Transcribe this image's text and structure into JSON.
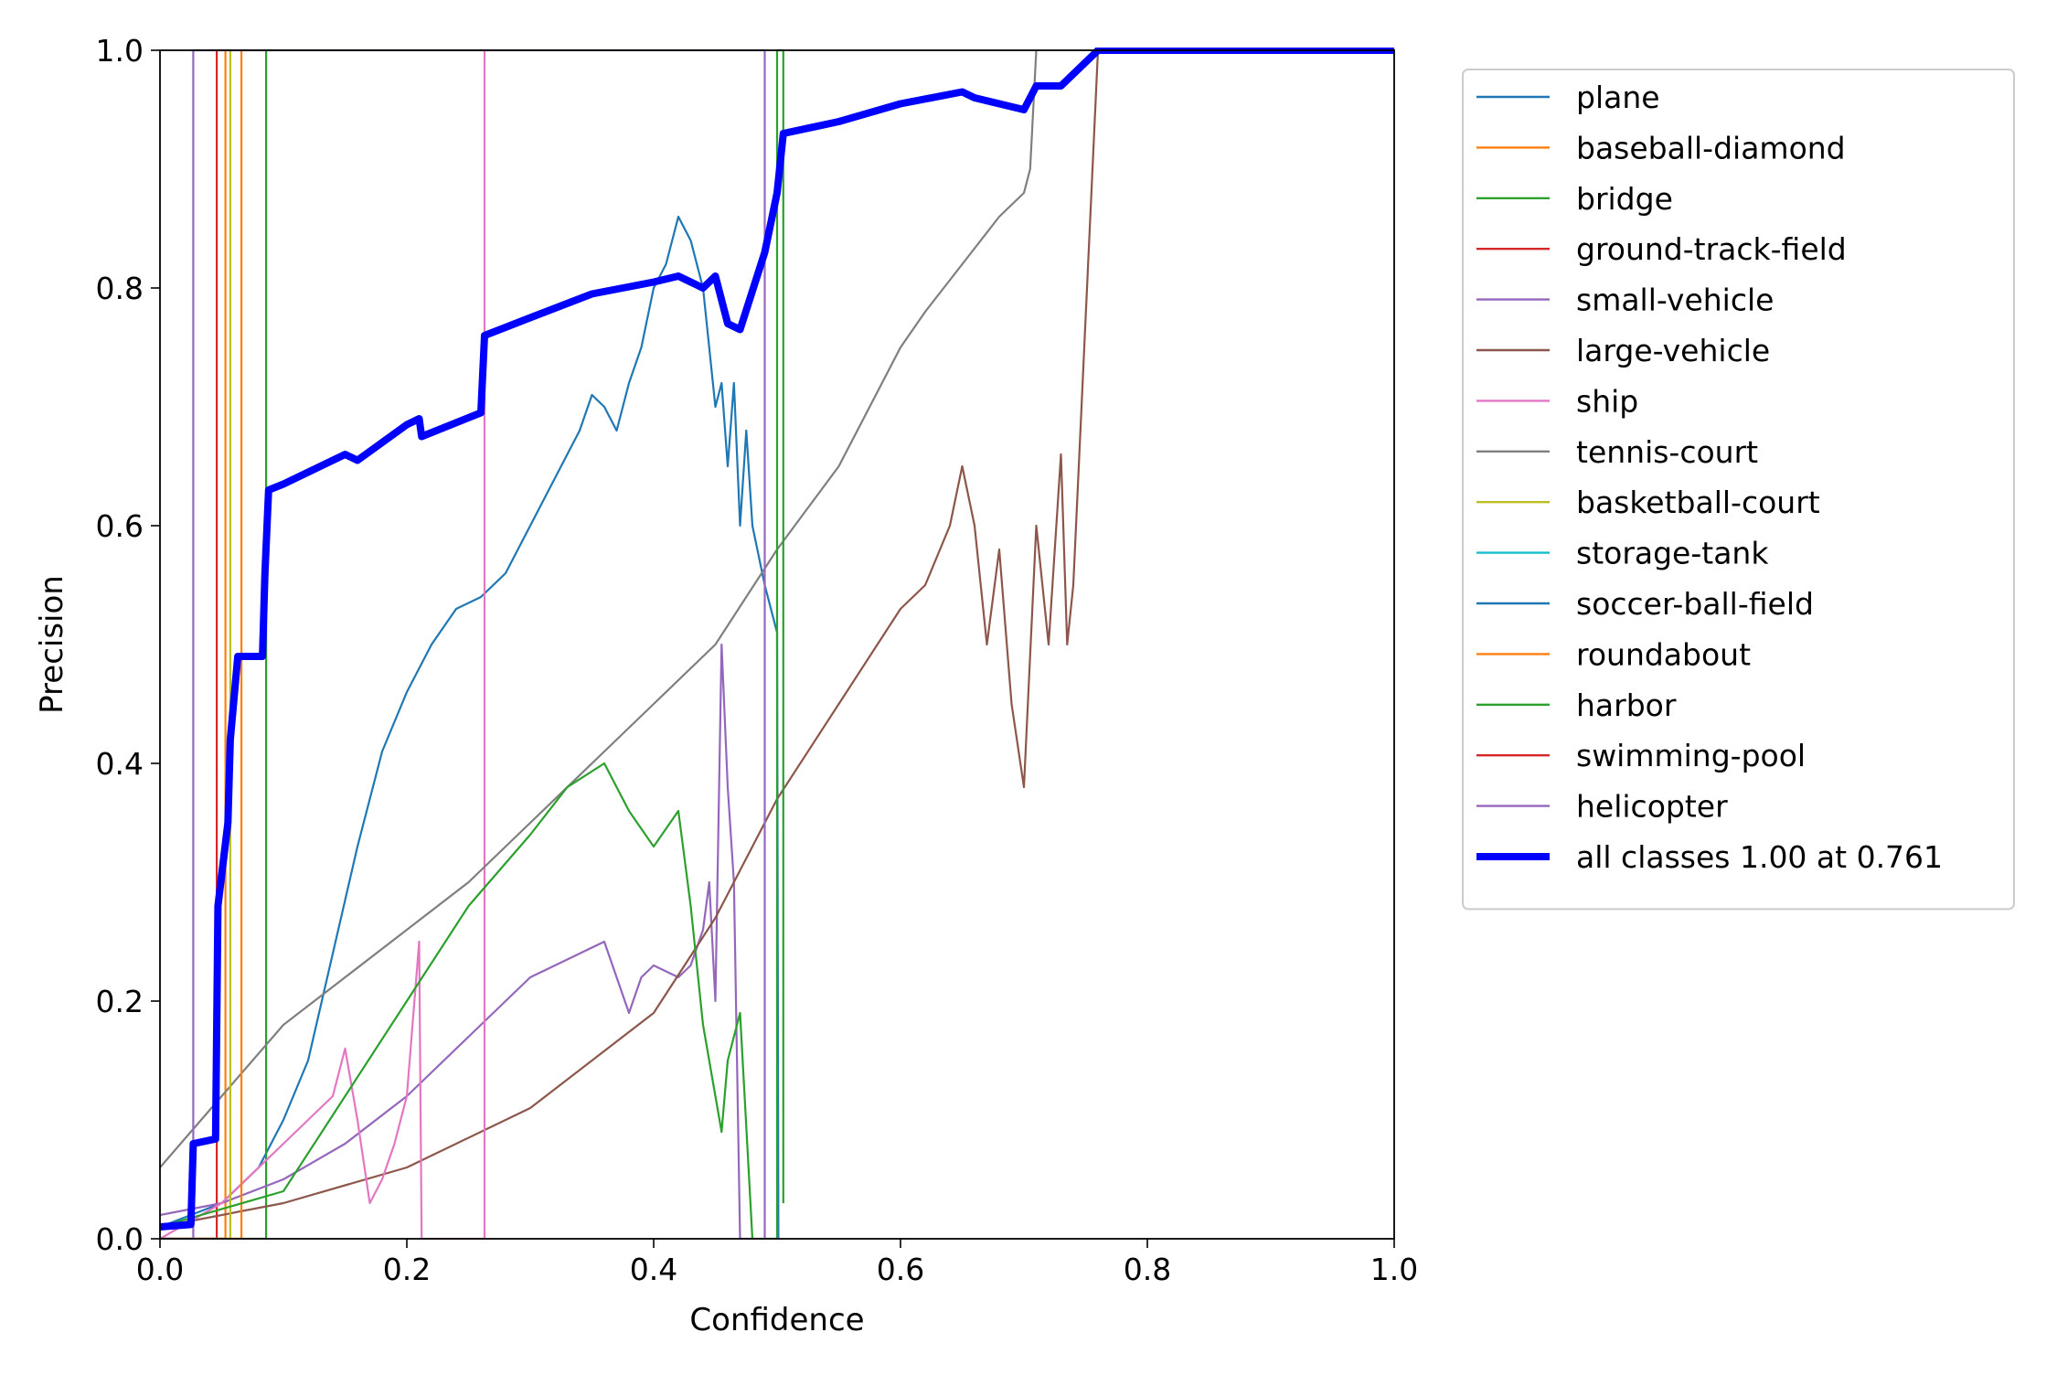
{
  "chart_data": {
    "type": "line",
    "xlabel": "Confidence",
    "ylabel": "Precision",
    "xlim": [
      0.0,
      1.0
    ],
    "ylim": [
      0.0,
      1.0
    ],
    "x_ticks": [
      "0.0",
      "0.2",
      "0.4",
      "0.6",
      "0.8",
      "1.0"
    ],
    "y_ticks": [
      "0.0",
      "0.2",
      "0.4",
      "0.6",
      "0.8",
      "1.0"
    ],
    "grid": false,
    "legend_position": "outside-upper-right",
    "series": [
      {
        "name": "plane",
        "color": "#1f77b4",
        "x": [
          0.0,
          0.05,
          0.08,
          0.1,
          0.12,
          0.14,
          0.16,
          0.18,
          0.2,
          0.22,
          0.24,
          0.26,
          0.28,
          0.3,
          0.32,
          0.34,
          0.35,
          0.36,
          0.37,
          0.38,
          0.39,
          0.4,
          0.41,
          0.42,
          0.43,
          0.44,
          0.45,
          0.455,
          0.46,
          0.465,
          0.47,
          0.475,
          0.48,
          0.49,
          0.5,
          0.501
        ],
        "y": [
          0.01,
          0.03,
          0.06,
          0.1,
          0.15,
          0.24,
          0.33,
          0.41,
          0.46,
          0.5,
          0.53,
          0.54,
          0.56,
          0.6,
          0.64,
          0.68,
          0.71,
          0.7,
          0.68,
          0.72,
          0.75,
          0.8,
          0.82,
          0.86,
          0.84,
          0.8,
          0.7,
          0.72,
          0.65,
          0.72,
          0.6,
          0.68,
          0.6,
          0.55,
          0.51,
          0.0
        ]
      },
      {
        "name": "baseball-diamond",
        "color": "#ff7f0e",
        "x": [
          0.0,
          0.053,
          0.053,
          0.053
        ],
        "y": [
          0.0,
          0.0,
          1.0,
          0.0
        ]
      },
      {
        "name": "bridge",
        "color": "#2ca02c",
        "x": [
          0.0,
          0.086,
          0.086,
          0.086
        ],
        "y": [
          0.0,
          0.0,
          1.0,
          0.0
        ]
      },
      {
        "name": "ground-track-field",
        "color": "#d62728",
        "x": [
          0.0,
          0.046,
          0.046,
          0.046
        ],
        "y": [
          0.0,
          0.0,
          1.0,
          0.0
        ]
      },
      {
        "name": "small-vehicle",
        "color": "#9467bd",
        "x": [
          0.0,
          0.05,
          0.1,
          0.15,
          0.2,
          0.25,
          0.28,
          0.3,
          0.32,
          0.34,
          0.36,
          0.37,
          0.38,
          0.39,
          0.4,
          0.42,
          0.43,
          0.44,
          0.445,
          0.45,
          0.455,
          0.46,
          0.465,
          0.47,
          0.48
        ],
        "y": [
          0.02,
          0.03,
          0.05,
          0.08,
          0.12,
          0.17,
          0.2,
          0.22,
          0.23,
          0.24,
          0.25,
          0.22,
          0.19,
          0.22,
          0.23,
          0.22,
          0.23,
          0.26,
          0.3,
          0.2,
          0.5,
          0.38,
          0.3,
          0.0,
          0.0
        ]
      },
      {
        "name": "large-vehicle",
        "color": "#8c564b",
        "x": [
          0.0,
          0.1,
          0.2,
          0.3,
          0.4,
          0.45,
          0.5,
          0.55,
          0.6,
          0.62,
          0.64,
          0.65,
          0.66,
          0.67,
          0.68,
          0.69,
          0.7,
          0.71,
          0.72,
          0.73,
          0.735,
          0.74,
          0.76
        ],
        "y": [
          0.01,
          0.03,
          0.06,
          0.11,
          0.19,
          0.27,
          0.37,
          0.45,
          0.53,
          0.55,
          0.6,
          0.65,
          0.6,
          0.5,
          0.58,
          0.45,
          0.38,
          0.6,
          0.5,
          0.66,
          0.5,
          0.55,
          1.0
        ]
      },
      {
        "name": "ship",
        "color": "#e377c2",
        "x": [
          0.0,
          0.05,
          0.1,
          0.12,
          0.14,
          0.15,
          0.16,
          0.17,
          0.18,
          0.19,
          0.2,
          0.21,
          0.212,
          0.263,
          0.263,
          0.263
        ],
        "y": [
          0.0,
          0.03,
          0.08,
          0.1,
          0.12,
          0.16,
          0.1,
          0.03,
          0.05,
          0.08,
          0.12,
          0.25,
          0.0,
          0.0,
          1.0,
          0.0
        ]
      },
      {
        "name": "tennis-court",
        "color": "#7f7f7f",
        "x": [
          0.0,
          0.05,
          0.1,
          0.15,
          0.2,
          0.25,
          0.3,
          0.35,
          0.4,
          0.45,
          0.5,
          0.55,
          0.6,
          0.62,
          0.65,
          0.68,
          0.7,
          0.705,
          0.71
        ],
        "y": [
          0.06,
          0.12,
          0.18,
          0.22,
          0.26,
          0.3,
          0.35,
          0.4,
          0.45,
          0.5,
          0.58,
          0.65,
          0.75,
          0.78,
          0.82,
          0.86,
          0.88,
          0.9,
          1.0
        ]
      },
      {
        "name": "basketball-court",
        "color": "#bcbd22",
        "x": [
          0.0,
          0.057,
          0.057,
          0.057
        ],
        "y": [
          0.0,
          0.0,
          1.0,
          0.0
        ]
      },
      {
        "name": "storage-tank",
        "color": "#17becf",
        "x": [
          0.0,
          0.01
        ],
        "y": [
          0.0,
          0.0
        ]
      },
      {
        "name": "soccer-ball-field",
        "color": "#1f77b4",
        "x": [
          0.0,
          0.01
        ],
        "y": [
          0.0,
          0.0
        ]
      },
      {
        "name": "roundabout",
        "color": "#ff7f0e",
        "x": [
          0.0,
          0.066,
          0.066,
          0.066
        ],
        "y": [
          0.0,
          0.0,
          1.0,
          0.0
        ]
      },
      {
        "name": "harbor",
        "color": "#2ca02c",
        "x": [
          0.0,
          0.1,
          0.15,
          0.2,
          0.25,
          0.3,
          0.33,
          0.36,
          0.38,
          0.4,
          0.42,
          0.43,
          0.44,
          0.45,
          0.455,
          0.46,
          0.47,
          0.48,
          0.49,
          0.5,
          0.5,
          0.505,
          0.505
        ],
        "y": [
          0.01,
          0.04,
          0.12,
          0.2,
          0.28,
          0.34,
          0.38,
          0.4,
          0.36,
          0.33,
          0.36,
          0.28,
          0.18,
          0.12,
          0.09,
          0.15,
          0.19,
          0.0,
          0.0,
          0.0,
          1.0,
          1.0,
          0.03
        ]
      },
      {
        "name": "swimming-pool",
        "color": "#d62728",
        "x": [
          0.0,
          0.01
        ],
        "y": [
          0.0,
          0.0
        ]
      },
      {
        "name": "helicopter",
        "color": "#9467bd",
        "x": [
          0.0,
          0.027,
          0.027,
          0.49,
          0.49,
          0.49
        ],
        "y": [
          0.0,
          0.0,
          1.0,
          1.0,
          0.0,
          0.0
        ]
      },
      {
        "name": "all classes 1.00 at 0.761",
        "color": "#0000ff",
        "bold": true,
        "x": [
          0.0,
          0.025,
          0.027,
          0.045,
          0.047,
          0.055,
          0.057,
          0.063,
          0.065,
          0.083,
          0.085,
          0.088,
          0.1,
          0.12,
          0.15,
          0.16,
          0.18,
          0.2,
          0.21,
          0.212,
          0.26,
          0.263,
          0.3,
          0.35,
          0.4,
          0.42,
          0.43,
          0.44,
          0.45,
          0.46,
          0.47,
          0.49,
          0.5,
          0.505,
          0.55,
          0.6,
          0.65,
          0.66,
          0.7,
          0.71,
          0.73,
          0.76,
          1.0
        ],
        "y": [
          0.01,
          0.012,
          0.08,
          0.084,
          0.28,
          0.35,
          0.42,
          0.49,
          0.49,
          0.49,
          0.56,
          0.63,
          0.635,
          0.645,
          0.66,
          0.655,
          0.67,
          0.685,
          0.69,
          0.675,
          0.695,
          0.76,
          0.775,
          0.795,
          0.805,
          0.81,
          0.805,
          0.8,
          0.81,
          0.77,
          0.765,
          0.83,
          0.88,
          0.93,
          0.94,
          0.955,
          0.965,
          0.96,
          0.95,
          0.97,
          0.97,
          1.0,
          1.0
        ]
      }
    ]
  }
}
